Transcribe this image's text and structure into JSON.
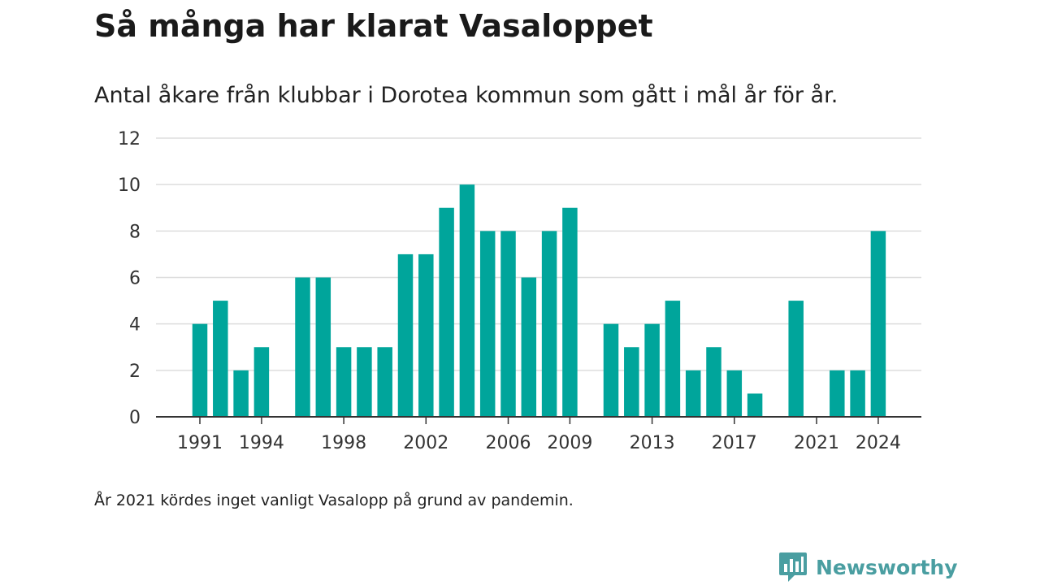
{
  "header": {
    "title": "Så många har klarat Vasaloppet",
    "subtitle": "Antal åkare från klubbar i Dorotea kommun som gått i mål år för år."
  },
  "footer": {
    "note": "År 2021 kördes inget vanligt Vasalopp på grund av pandemin.",
    "brand": "Newsworthy"
  },
  "colors": {
    "bar": "#00a59b",
    "gridline": "#dddddd",
    "axis": "#333333",
    "brand": "#4a9ea1"
  },
  "chart_data": {
    "type": "bar",
    "x": [
      1991,
      1992,
      1993,
      1994,
      1995,
      1996,
      1997,
      1998,
      1999,
      2000,
      2001,
      2002,
      2003,
      2004,
      2005,
      2006,
      2007,
      2008,
      2009,
      2010,
      2011,
      2012,
      2013,
      2014,
      2015,
      2016,
      2017,
      2018,
      2019,
      2020,
      2021,
      2022,
      2023,
      2024
    ],
    "values": [
      4,
      5,
      2,
      3,
      0,
      6,
      6,
      3,
      3,
      3,
      7,
      7,
      9,
      10,
      8,
      8,
      6,
      8,
      9,
      0,
      4,
      3,
      4,
      5,
      2,
      3,
      2,
      1,
      0,
      5,
      0,
      2,
      2,
      8
    ],
    "x_tick_labels": [
      "1991",
      "1994",
      "1998",
      "2002",
      "2006",
      "2009",
      "2013",
      "2017",
      "2021",
      "2024"
    ],
    "y_ticks": [
      "0",
      "2",
      "4",
      "6",
      "8",
      "10",
      "12"
    ],
    "ylim": [
      0,
      12
    ],
    "grid": true
  }
}
